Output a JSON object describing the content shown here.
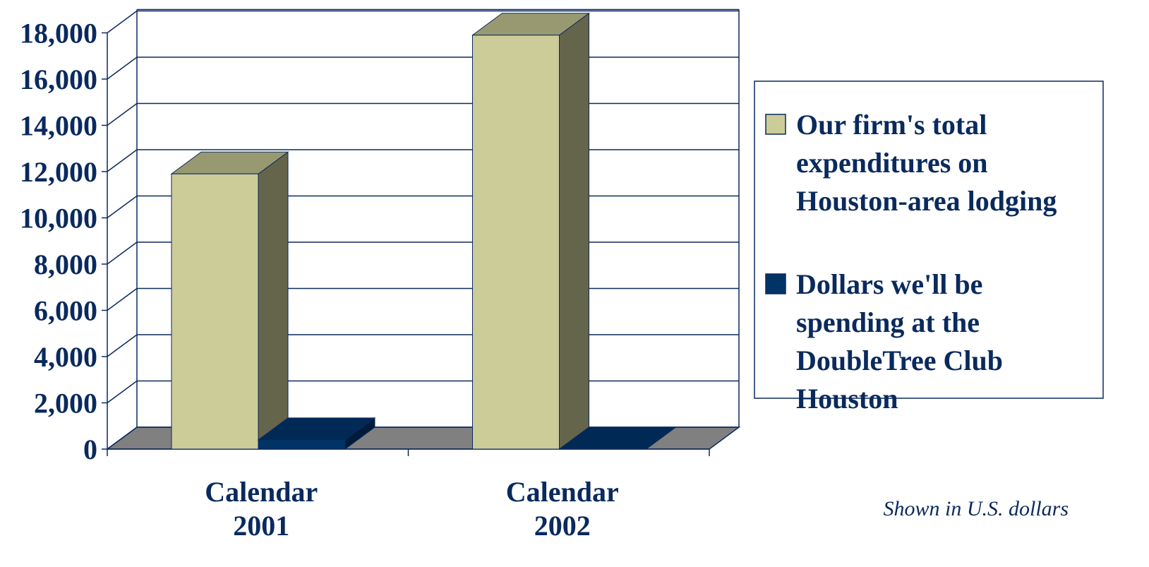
{
  "chart_data": {
    "type": "bar",
    "categories": [
      "Calendar 2001",
      "Calendar 2002"
    ],
    "category_lines": [
      [
        "Calendar",
        "2001"
      ],
      [
        "Calendar",
        "2002"
      ]
    ],
    "series": [
      {
        "name": "Our firm's total expenditures on Houston-area lodging",
        "legend_lines": [
          "Our firm's total",
          "expenditures on",
          "Houston-area lodging"
        ],
        "values": [
          11900,
          17900
        ],
        "color": "#cccc99",
        "top_color": "#999971",
        "side_color": "#65654c"
      },
      {
        "name": "Dollars we'll be spending at the DoubleTree Club Houston",
        "legend_lines": [
          "Dollars we'll be",
          "spending at the",
          "DoubleTree Club",
          "Houston"
        ],
        "values": [
          400,
          0
        ],
        "color": "#003366",
        "top_color": "#002a55",
        "side_color": "#001a3a"
      }
    ],
    "yticks": [
      0,
      2000,
      4000,
      6000,
      8000,
      10000,
      12000,
      14000,
      16000,
      18000
    ],
    "ytick_labels": [
      "0",
      "2,000",
      "4,000",
      "6,000",
      "8,000",
      "10,000",
      "12,000",
      "14,000",
      "16,000",
      "18,000"
    ],
    "ylim": [
      0,
      19000
    ],
    "grid": true,
    "legend_position": "right",
    "note": "Shown in U.S. dollars",
    "colors": {
      "text": "#0a2a5e",
      "axis": "#0a2a5e",
      "floor": "#808080"
    }
  }
}
